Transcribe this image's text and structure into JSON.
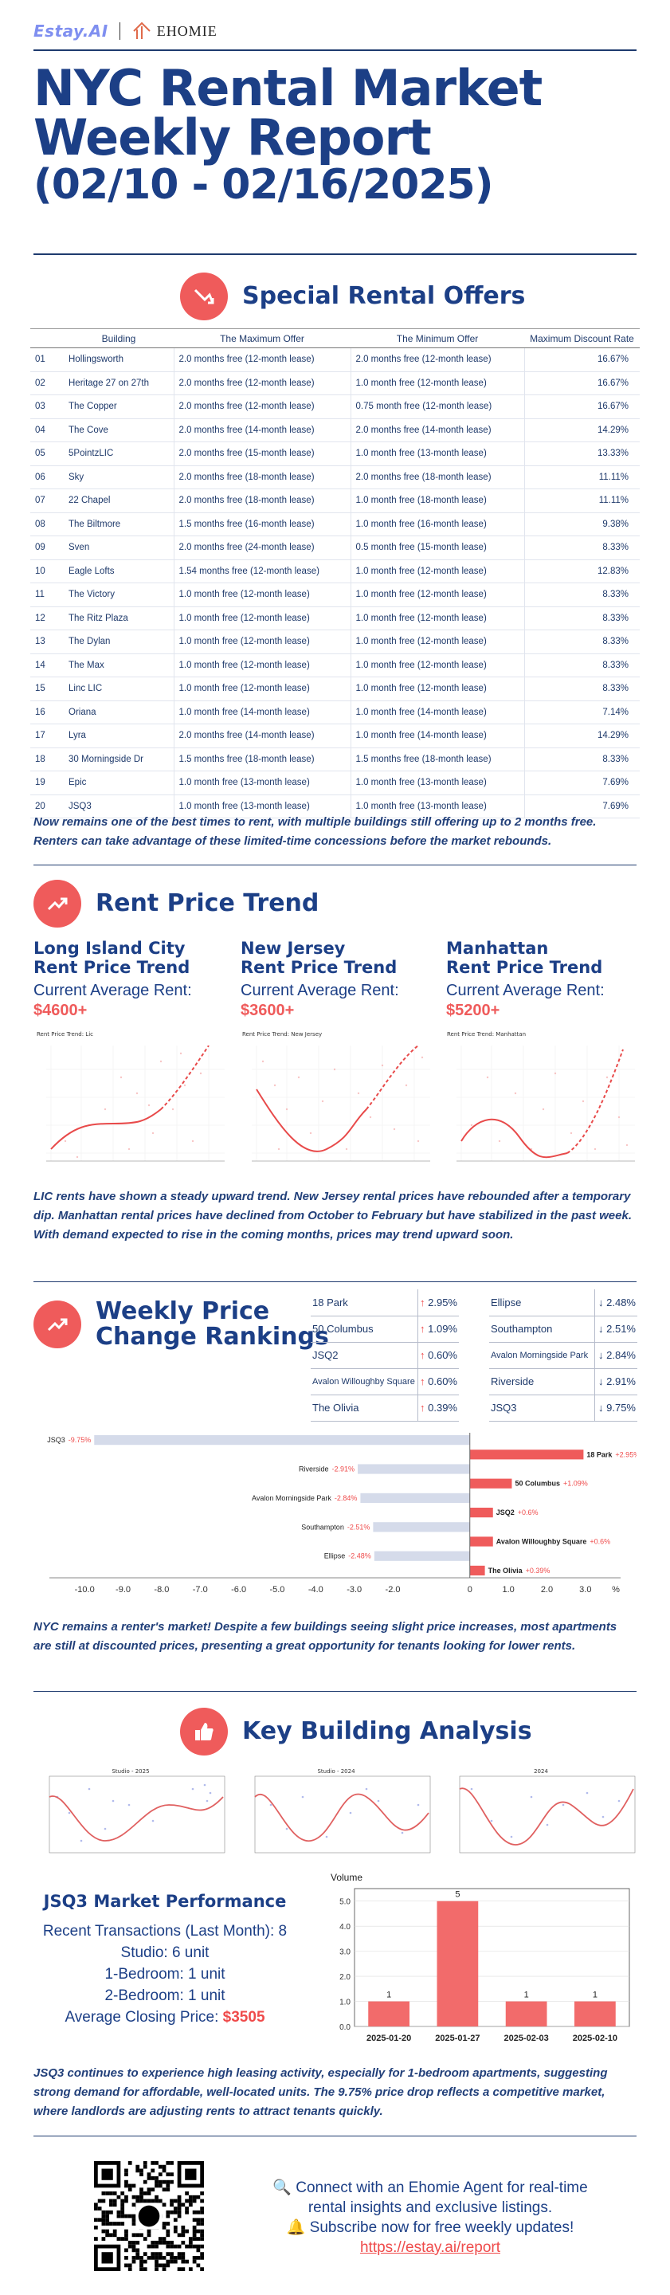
{
  "brand": {
    "logo_a": "Estay.AI",
    "logo_b": "EHOMIE"
  },
  "title": {
    "line1": "NYC Rental Market",
    "line2": "Weekly Report",
    "line3": "(02/10 - 02/16/2025)"
  },
  "offers": {
    "heading": "Special Rental Offers",
    "columns": [
      "Building",
      "The Maximum Offer",
      "The Minimum Offer",
      "Maximum Discount Rate"
    ],
    "rows": [
      {
        "n": "01",
        "b": "Hollingsworth",
        "max": "2.0 months free (12-month lease)",
        "min": "2.0 months free (12-month lease)",
        "r": "16.67%"
      },
      {
        "n": "02",
        "b": "Heritage 27 on 27th",
        "max": "2.0 months free (12-month lease)",
        "min": "1.0 month free (12-month lease)",
        "r": "16.67%"
      },
      {
        "n": "03",
        "b": "The Copper",
        "max": "2.0 months free (12-month lease)",
        "min": "0.75 month free (12-month lease)",
        "r": "16.67%"
      },
      {
        "n": "04",
        "b": "The Cove",
        "max": "2.0 months free (14-month lease)",
        "min": "2.0 months free (14-month lease)",
        "r": "14.29%"
      },
      {
        "n": "05",
        "b": "5PointzLIC",
        "max": "2.0 months free (15-month lease)",
        "min": "1.0 month free (13-month lease)",
        "r": "13.33%"
      },
      {
        "n": "06",
        "b": "Sky",
        "max": "2.0 months free (18-month lease)",
        "min": "2.0 months free (18-month lease)",
        "r": "11.11%"
      },
      {
        "n": "07",
        "b": "22 Chapel",
        "max": "2.0 months free (18-month lease)",
        "min": "1.0 month free (18-month lease)",
        "r": "11.11%"
      },
      {
        "n": "08",
        "b": "The Biltmore",
        "max": "1.5 months free (16-month lease)",
        "min": "1.0 month free (16-month lease)",
        "r": "9.38%"
      },
      {
        "n": "09",
        "b": "Sven",
        "max": "2.0 months free (24-month lease)",
        "min": "0.5 month free (15-month lease)",
        "r": "8.33%"
      },
      {
        "n": "10",
        "b": "Eagle Lofts",
        "max": "1.54 months free (12-month lease)",
        "min": "1.0 month free (12-month lease)",
        "r": "12.83%"
      },
      {
        "n": "11",
        "b": "The Victory",
        "max": "1.0 month free (12-month lease)",
        "min": "1.0 month free (12-month lease)",
        "r": "8.33%"
      },
      {
        "n": "12",
        "b": "The Ritz Plaza",
        "max": "1.0 month free (12-month lease)",
        "min": "1.0 month free (12-month lease)",
        "r": "8.33%"
      },
      {
        "n": "13",
        "b": "The Dylan",
        "max": "1.0 month free (12-month lease)",
        "min": "1.0 month free (12-month lease)",
        "r": "8.33%"
      },
      {
        "n": "14",
        "b": "The Max",
        "max": "1.0 month free (12-month lease)",
        "min": "1.0 month free (12-month lease)",
        "r": "8.33%"
      },
      {
        "n": "15",
        "b": "Linc LIC",
        "max": "1.0 month free (12-month lease)",
        "min": "1.0 month free (12-month lease)",
        "r": "8.33%"
      },
      {
        "n": "16",
        "b": "Oriana",
        "max": "1.0 month free (14-month lease)",
        "min": "1.0 month free (14-month lease)",
        "r": "7.14%"
      },
      {
        "n": "17",
        "b": "Lyra",
        "max": "2.0 months free (14-month lease)",
        "min": "1.0 month free (14-month lease)",
        "r": "14.29%"
      },
      {
        "n": "18",
        "b": "30 Morningside Dr",
        "max": "1.5 months free (18-month lease)",
        "min": "1.5 months free (18-month lease)",
        "r": "8.33%"
      },
      {
        "n": "19",
        "b": "Epic",
        "max": "1.0 month free (13-month lease)",
        "min": "1.0 month free (13-month lease)",
        "r": "7.69%"
      },
      {
        "n": "20",
        "b": "JSQ3",
        "max": "1.0 month free (13-month lease)",
        "min": "1.0 month free (13-month lease)",
        "r": "7.69%"
      }
    ],
    "note": "Now remains one of the best times to rent, with multiple buildings still offering up to 2 months free. Renters can take advantage of these limited-time concessions before the market rebounds."
  },
  "trend": {
    "heading": "Rent Price Trend",
    "cols": [
      {
        "name1": "Long Island City",
        "name2": "Rent Price Trend",
        "cur": "Current Average Rent:",
        "price": "$4600+",
        "mini_title": "Rent Price Trend: Lic"
      },
      {
        "name1": "New Jersey",
        "name2": "Rent Price Trend",
        "cur": "Current Average Rent:",
        "price": "$3600+",
        "mini_title": "Rent Price Trend: New Jersey"
      },
      {
        "name1": "Manhattan",
        "name2": "Rent Price Trend",
        "cur": "Current Average Rent:",
        "price": "$5200+",
        "mini_title": "Rent Price Trend: Manhattan"
      }
    ],
    "note": "LIC rents have shown a steady upward trend. New Jersey rental prices have rebounded after a temporary dip. Manhattan rental prices have declined from October to February but have stabilized in the past week. With demand expected to rise in the coming months, prices may trend upward soon."
  },
  "weekly": {
    "heading1": "Weekly Price",
    "heading2": "Change Rankings",
    "up": [
      {
        "name": "18 Park",
        "val": "2.95%"
      },
      {
        "name": "50 Columbus",
        "val": "1.09%"
      },
      {
        "name": "JSQ2",
        "val": "0.60%"
      },
      {
        "name": "Avalon Willoughby Square",
        "val": "0.60%"
      },
      {
        "name": "The Olivia",
        "val": "0.39%"
      }
    ],
    "down": [
      {
        "name": "Ellipse",
        "val": "2.48%"
      },
      {
        "name": "Southampton",
        "val": "2.51%"
      },
      {
        "name": "Avalon Morningside Park",
        "val": "2.84%"
      },
      {
        "name": "Riverside",
        "val": "2.91%"
      },
      {
        "name": "JSQ3",
        "val": "9.75%"
      }
    ],
    "up_arrow": "↑",
    "down_arrow": "↓",
    "note": "NYC remains a renter's market! Despite a few buildings seeing slight price increases, most apartments are still at discounted prices, presenting a great opportunity for tenants looking for lower rents."
  },
  "chart_data": [
    {
      "type": "bar",
      "orientation": "horizontal",
      "categories": [
        "JSQ3",
        "18 Park",
        "Riverside",
        "50 Columbus",
        "Avalon Morningside Park",
        "JSQ2",
        "Southampton",
        "Avalon Willoughby Square",
        "Ellipse",
        "The Olivia"
      ],
      "values": [
        -9.75,
        2.95,
        -2.91,
        1.09,
        -2.84,
        0.6,
        -2.51,
        0.6,
        -2.48,
        0.39
      ],
      "labels": [
        "-9.75%",
        "+2.95%",
        "-2.91%",
        "+1.09%",
        "-2.84%",
        "+0.6%",
        "-2.51%",
        "+0.6%",
        "-2.48%",
        "+0.39%"
      ],
      "xticks": [
        "-10.0",
        "-9.0",
        "-8.0",
        "-7.0",
        "-6.0",
        "-5.0",
        "-4.0",
        "-3.0",
        "-2.0",
        "0",
        "1.0",
        "2.0",
        "3.0",
        "%"
      ],
      "xlim": [
        -10.5,
        3.5
      ],
      "colors": {
        "negative": "#d5dbea",
        "positive": "#ef5b5b"
      }
    },
    {
      "type": "bar",
      "categories": [
        "2025-01-20",
        "2025-01-27",
        "2025-02-03",
        "2025-02-10"
      ],
      "values": [
        1,
        5,
        1,
        1
      ],
      "ylabel": "Volume",
      "yticks": [
        "0.0",
        "1.0",
        "2.0",
        "3.0",
        "4.0",
        "5.0"
      ],
      "ylim": [
        0,
        5.5
      ],
      "color": "#f26b6b"
    }
  ],
  "key": {
    "heading": "Key Building Analysis",
    "mini_titles": [
      "Studio - 2025",
      "Studio - 2024",
      "2024"
    ],
    "perf_title": "JSQ3 Market Performance",
    "lines": [
      "Recent Transactions (Last Month): 8",
      "Studio: 6 unit",
      "1-Bedroom: 1 unit",
      "2-Bedroom: 1 unit"
    ],
    "avg_label": "Average Closing Price: ",
    "avg_price": "$3505",
    "note": "JSQ3 continues to experience high leasing activity, especially for 1-bedroom apartments, suggesting strong demand for affordable, well-located units. The 9.75% price drop reflects a competitive market, where landlords are adjusting rents to attract tenants quickly."
  },
  "footer": {
    "line1": "🔍 Connect with an Ehomie Agent for real-time",
    "line2": "rental insights and exclusive listings.",
    "line3": "🔔 Subscribe now for free weekly updates!",
    "link": "https://estay.ai/report"
  }
}
